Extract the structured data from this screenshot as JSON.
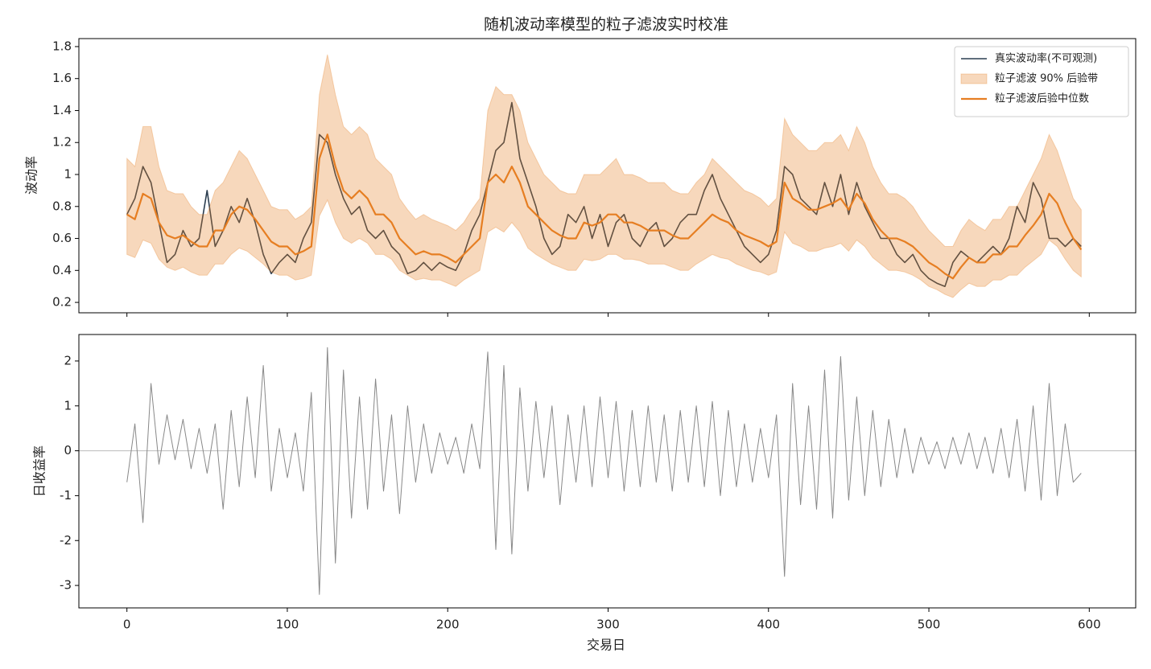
{
  "chart_data": [
    {
      "type": "line",
      "title": "随机波动率模型的粒子滤波实时校准",
      "ylabel": "波动率",
      "x": [
        0,
        5,
        10,
        15,
        20,
        25,
        30,
        35,
        40,
        45,
        50,
        55,
        60,
        65,
        70,
        75,
        80,
        85,
        90,
        95,
        100,
        105,
        110,
        115,
        120,
        125,
        130,
        135,
        140,
        145,
        150,
        155,
        160,
        165,
        170,
        175,
        180,
        185,
        190,
        195,
        200,
        205,
        210,
        215,
        220,
        225,
        230,
        235,
        240,
        245,
        250,
        255,
        260,
        265,
        270,
        275,
        280,
        285,
        290,
        295,
        300,
        305,
        310,
        315,
        320,
        325,
        330,
        335,
        340,
        345,
        350,
        355,
        360,
        365,
        370,
        375,
        380,
        385,
        390,
        395,
        400,
        405,
        410,
        415,
        420,
        425,
        430,
        435,
        440,
        445,
        450,
        455,
        460,
        465,
        470,
        475,
        480,
        485,
        490,
        495,
        500,
        505,
        510,
        515,
        520,
        525,
        530,
        535,
        540,
        545,
        550,
        555,
        560,
        565,
        570,
        575,
        580,
        585,
        590,
        595
      ],
      "xlim": [
        -29.95,
        628.95
      ],
      "xticks": [
        0,
        100,
        200,
        300,
        400,
        500,
        600
      ],
      "ylim": [
        0.135,
        1.85
      ],
      "yticks": [
        0.2,
        0.4,
        0.6,
        0.8,
        1.0,
        1.2,
        1.4,
        1.6,
        1.8
      ],
      "legend": "upper right",
      "series": [
        {
          "name": "真实波动率(不可观测)",
          "color": "#2c3e50",
          "values": [
            0.75,
            0.85,
            1.05,
            0.95,
            0.7,
            0.45,
            0.5,
            0.65,
            0.55,
            0.6,
            0.9,
            0.55,
            0.65,
            0.8,
            0.7,
            0.85,
            0.7,
            0.5,
            0.38,
            0.45,
            0.5,
            0.45,
            0.6,
            0.7,
            1.25,
            1.2,
            1.0,
            0.85,
            0.75,
            0.8,
            0.65,
            0.6,
            0.65,
            0.55,
            0.5,
            0.38,
            0.4,
            0.45,
            0.4,
            0.45,
            0.42,
            0.4,
            0.5,
            0.65,
            0.75,
            0.95,
            1.15,
            1.2,
            1.45,
            1.1,
            0.95,
            0.8,
            0.6,
            0.5,
            0.55,
            0.75,
            0.7,
            0.8,
            0.6,
            0.75,
            0.55,
            0.7,
            0.75,
            0.6,
            0.55,
            0.65,
            0.7,
            0.55,
            0.6,
            0.7,
            0.75,
            0.75,
            0.9,
            1.0,
            0.85,
            0.75,
            0.65,
            0.55,
            0.5,
            0.45,
            0.5,
            0.65,
            1.05,
            1.0,
            0.85,
            0.8,
            0.75,
            0.95,
            0.8,
            1.0,
            0.75,
            0.95,
            0.8,
            0.7,
            0.6,
            0.6,
            0.5,
            0.45,
            0.5,
            0.4,
            0.35,
            0.32,
            0.3,
            0.45,
            0.52,
            0.48,
            0.45,
            0.5,
            0.55,
            0.5,
            0.6,
            0.8,
            0.7,
            0.95,
            0.85,
            0.6,
            0.6,
            0.55,
            0.6,
            0.55
          ]
        },
        {
          "name": "粒子滤波 90% 后验带",
          "color": "#e67e22",
          "type": "band",
          "lower": [
            0.5,
            0.48,
            0.59,
            0.57,
            0.47,
            0.42,
            0.4,
            0.42,
            0.39,
            0.37,
            0.37,
            0.44,
            0.44,
            0.5,
            0.54,
            0.52,
            0.48,
            0.44,
            0.39,
            0.37,
            0.37,
            0.34,
            0.35,
            0.37,
            0.74,
            0.84,
            0.7,
            0.6,
            0.57,
            0.6,
            0.57,
            0.5,
            0.5,
            0.47,
            0.4,
            0.37,
            0.34,
            0.35,
            0.34,
            0.34,
            0.32,
            0.3,
            0.34,
            0.37,
            0.4,
            0.64,
            0.67,
            0.64,
            0.7,
            0.64,
            0.54,
            0.5,
            0.47,
            0.44,
            0.42,
            0.4,
            0.4,
            0.47,
            0.46,
            0.47,
            0.5,
            0.5,
            0.47,
            0.47,
            0.46,
            0.44,
            0.44,
            0.44,
            0.42,
            0.4,
            0.4,
            0.44,
            0.47,
            0.5,
            0.48,
            0.47,
            0.44,
            0.42,
            0.4,
            0.39,
            0.37,
            0.39,
            0.64,
            0.57,
            0.55,
            0.52,
            0.52,
            0.54,
            0.55,
            0.57,
            0.52,
            0.59,
            0.55,
            0.48,
            0.44,
            0.4,
            0.4,
            0.39,
            0.37,
            0.34,
            0.3,
            0.28,
            0.25,
            0.23,
            0.28,
            0.32,
            0.3,
            0.3,
            0.34,
            0.34,
            0.37,
            0.37,
            0.42,
            0.46,
            0.5,
            0.59,
            0.55,
            0.47,
            0.4,
            0.36
          ],
          "upper": [
            1.1,
            1.05,
            1.3,
            1.3,
            1.05,
            0.9,
            0.88,
            0.88,
            0.8,
            0.75,
            0.75,
            0.9,
            0.95,
            1.05,
            1.15,
            1.1,
            1.0,
            0.9,
            0.8,
            0.78,
            0.78,
            0.72,
            0.75,
            0.8,
            1.5,
            1.75,
            1.5,
            1.3,
            1.25,
            1.3,
            1.25,
            1.1,
            1.05,
            1.0,
            0.85,
            0.78,
            0.72,
            0.75,
            0.72,
            0.7,
            0.68,
            0.65,
            0.7,
            0.78,
            0.85,
            1.4,
            1.55,
            1.5,
            1.5,
            1.4,
            1.2,
            1.1,
            1.0,
            0.95,
            0.9,
            0.88,
            0.88,
            1.0,
            1.0,
            1.0,
            1.05,
            1.1,
            1.0,
            1.0,
            0.98,
            0.95,
            0.95,
            0.95,
            0.9,
            0.88,
            0.88,
            0.95,
            1.0,
            1.1,
            1.05,
            1.0,
            0.95,
            0.9,
            0.88,
            0.85,
            0.8,
            0.85,
            1.35,
            1.25,
            1.2,
            1.15,
            1.15,
            1.2,
            1.2,
            1.25,
            1.15,
            1.3,
            1.2,
            1.05,
            0.95,
            0.88,
            0.88,
            0.85,
            0.8,
            0.72,
            0.65,
            0.6,
            0.55,
            0.55,
            0.65,
            0.72,
            0.68,
            0.65,
            0.72,
            0.72,
            0.8,
            0.8,
            0.9,
            1.0,
            1.1,
            1.25,
            1.15,
            1.0,
            0.85,
            0.78
          ]
        },
        {
          "name": "粒子滤波后验中位数",
          "color": "#e67e22",
          "values": [
            0.75,
            0.72,
            0.88,
            0.85,
            0.7,
            0.62,
            0.6,
            0.62,
            0.58,
            0.55,
            0.55,
            0.65,
            0.65,
            0.75,
            0.8,
            0.78,
            0.72,
            0.65,
            0.58,
            0.55,
            0.55,
            0.5,
            0.52,
            0.55,
            1.1,
            1.25,
            1.05,
            0.9,
            0.85,
            0.9,
            0.85,
            0.75,
            0.75,
            0.7,
            0.6,
            0.55,
            0.5,
            0.52,
            0.5,
            0.5,
            0.48,
            0.45,
            0.5,
            0.55,
            0.6,
            0.95,
            1.0,
            0.95,
            1.05,
            0.95,
            0.8,
            0.75,
            0.7,
            0.65,
            0.62,
            0.6,
            0.6,
            0.7,
            0.68,
            0.7,
            0.75,
            0.75,
            0.7,
            0.7,
            0.68,
            0.65,
            0.65,
            0.65,
            0.62,
            0.6,
            0.6,
            0.65,
            0.7,
            0.75,
            0.72,
            0.7,
            0.65,
            0.62,
            0.6,
            0.58,
            0.55,
            0.58,
            0.95,
            0.85,
            0.82,
            0.78,
            0.78,
            0.8,
            0.82,
            0.85,
            0.78,
            0.88,
            0.82,
            0.72,
            0.65,
            0.6,
            0.6,
            0.58,
            0.55,
            0.5,
            0.45,
            0.42,
            0.38,
            0.35,
            0.42,
            0.48,
            0.45,
            0.45,
            0.5,
            0.5,
            0.55,
            0.55,
            0.62,
            0.68,
            0.75,
            0.88,
            0.82,
            0.7,
            0.6,
            0.53
          ]
        }
      ]
    },
    {
      "type": "line",
      "xlabel": "交易日",
      "ylabel": "日收益率",
      "x": [
        0,
        5,
        10,
        15,
        20,
        25,
        30,
        35,
        40,
        45,
        50,
        55,
        60,
        65,
        70,
        75,
        80,
        85,
        90,
        95,
        100,
        105,
        110,
        115,
        120,
        125,
        130,
        135,
        140,
        145,
        150,
        155,
        160,
        165,
        170,
        175,
        180,
        185,
        190,
        195,
        200,
        205,
        210,
        215,
        220,
        225,
        230,
        235,
        240,
        245,
        250,
        255,
        260,
        265,
        270,
        275,
        280,
        285,
        290,
        295,
        300,
        305,
        310,
        315,
        320,
        325,
        330,
        335,
        340,
        345,
        350,
        355,
        360,
        365,
        370,
        375,
        380,
        385,
        390,
        395,
        400,
        405,
        410,
        415,
        420,
        425,
        430,
        435,
        440,
        445,
        450,
        455,
        460,
        465,
        470,
        475,
        480,
        485,
        490,
        495,
        500,
        505,
        510,
        515,
        520,
        525,
        530,
        535,
        540,
        545,
        550,
        555,
        560,
        565,
        570,
        575,
        580,
        585,
        590,
        595
      ],
      "xlim": [
        -29.95,
        628.95
      ],
      "xticks": [
        0,
        100,
        200,
        300,
        400,
        500,
        600
      ],
      "ylim": [
        -3.5,
        2.59
      ],
      "yticks": [
        -3,
        -2,
        -1,
        0,
        1,
        2
      ],
      "zero_line": true,
      "series": [
        {
          "color": "#888888",
          "values": [
            -0.7,
            0.6,
            -1.6,
            1.5,
            -0.3,
            0.8,
            -0.2,
            0.7,
            -0.4,
            0.5,
            -0.5,
            0.6,
            -1.3,
            0.9,
            -0.8,
            1.2,
            -0.6,
            1.9,
            -0.9,
            0.5,
            -0.6,
            0.4,
            -0.9,
            1.3,
            -3.2,
            2.3,
            -2.5,
            1.8,
            -1.5,
            1.2,
            -1.3,
            1.6,
            -0.9,
            0.8,
            -1.4,
            1.0,
            -0.7,
            0.6,
            -0.5,
            0.4,
            -0.3,
            0.3,
            -0.5,
            0.6,
            -0.4,
            2.2,
            -2.2,
            1.9,
            -2.3,
            1.4,
            -0.9,
            1.1,
            -0.6,
            1.0,
            -1.2,
            0.8,
            -0.7,
            1.0,
            -0.8,
            1.2,
            -0.6,
            1.1,
            -0.9,
            0.9,
            -0.8,
            1.0,
            -0.7,
            0.8,
            -0.9,
            0.9,
            -0.7,
            1.0,
            -0.8,
            1.1,
            -1.0,
            0.9,
            -0.8,
            0.6,
            -0.7,
            0.5,
            -0.6,
            0.8,
            -2.8,
            1.5,
            -1.2,
            1.0,
            -1.3,
            1.8,
            -1.5,
            2.1,
            -1.1,
            1.2,
            -1.0,
            0.9,
            -0.8,
            0.7,
            -0.6,
            0.5,
            -0.5,
            0.3,
            -0.3,
            0.2,
            -0.4,
            0.3,
            -0.3,
            0.4,
            -0.4,
            0.3,
            -0.5,
            0.5,
            -0.6,
            0.7,
            -0.9,
            1.0,
            -1.1,
            1.5,
            -1.0,
            0.6,
            -0.7,
            -0.5
          ]
        }
      ]
    }
  ]
}
